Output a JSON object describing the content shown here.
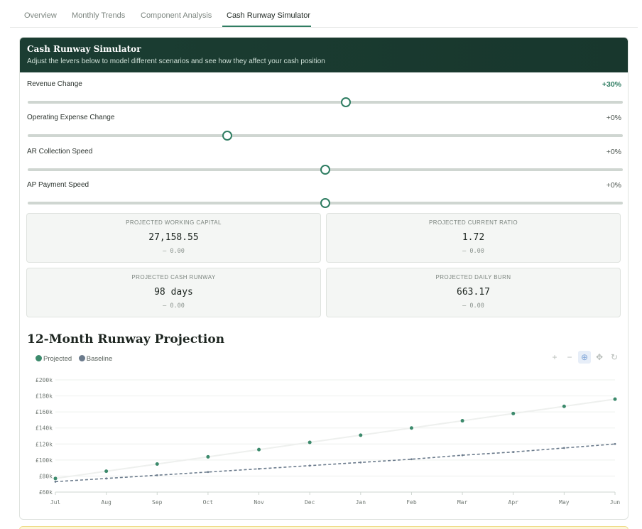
{
  "tabs": [
    {
      "label": "Overview",
      "active": false
    },
    {
      "label": "Monthly Trends",
      "active": false
    },
    {
      "label": "Component Analysis",
      "active": false
    },
    {
      "label": "Cash Runway Simulator",
      "active": true
    }
  ],
  "simulator": {
    "title": "Cash Runway Simulator",
    "subtitle": "Adjust the levers below to model different scenarios and see how they affect your cash position",
    "accent_color": "#2f7d62",
    "header_color": "#1b3d32"
  },
  "sliders": [
    {
      "label": "Revenue Change",
      "value": "+30%",
      "position": 0.535
    },
    {
      "label": "Operating Expense Change",
      "value": "+0%",
      "position": 0.335
    },
    {
      "label": "AR Collection Speed",
      "value": "+0%",
      "position": 0.5
    },
    {
      "label": "AP Payment Speed",
      "value": "+0%",
      "position": 0.5
    }
  ],
  "metrics": [
    {
      "label": "PROJECTED WORKING CAPITAL",
      "value": "27,158.55",
      "delta": "— 0.00"
    },
    {
      "label": "PROJECTED CURRENT RATIO",
      "value": "1.72",
      "delta": "— 0.00"
    },
    {
      "label": "PROJECTED CASH RUNWAY",
      "value": "98 days",
      "delta": "— 0.00"
    },
    {
      "label": "PROJECTED DAILY BURN",
      "value": "663.17",
      "delta": "— 0.00"
    }
  ],
  "chart_toolbar": {
    "zoom_in": "+",
    "zoom_out": "−",
    "zoom": "⊕",
    "pan": "✥",
    "reset": "↻",
    "zoom_active": true
  },
  "chart_data": {
    "type": "line",
    "title": "12-Month Runway Projection",
    "categories": [
      "Jul",
      "Aug",
      "Sep",
      "Oct",
      "Nov",
      "Dec",
      "Jan",
      "Feb",
      "Mar",
      "Apr",
      "May",
      "Jun"
    ],
    "y_ticks": [
      "£60k",
      "£80k",
      "£100k",
      "£120k",
      "£140k",
      "£160k",
      "£180k",
      "£200k"
    ],
    "ylim": [
      60000,
      200000
    ],
    "legend_placement": "top-left",
    "grid": true,
    "series": [
      {
        "name": "Projected",
        "color": "#3c8a6c",
        "style": "markers",
        "values": [
          77000,
          86000,
          95000,
          104000,
          113000,
          122000,
          131000,
          140000,
          149000,
          158000,
          167000,
          176000
        ]
      },
      {
        "name": "Baseline",
        "color": "#6b7b8c",
        "style": "dashed",
        "values": [
          73000,
          77000,
          81000,
          85000,
          89000,
          93000,
          97000,
          101000,
          106000,
          110000,
          115000,
          120000
        ]
      }
    ]
  }
}
